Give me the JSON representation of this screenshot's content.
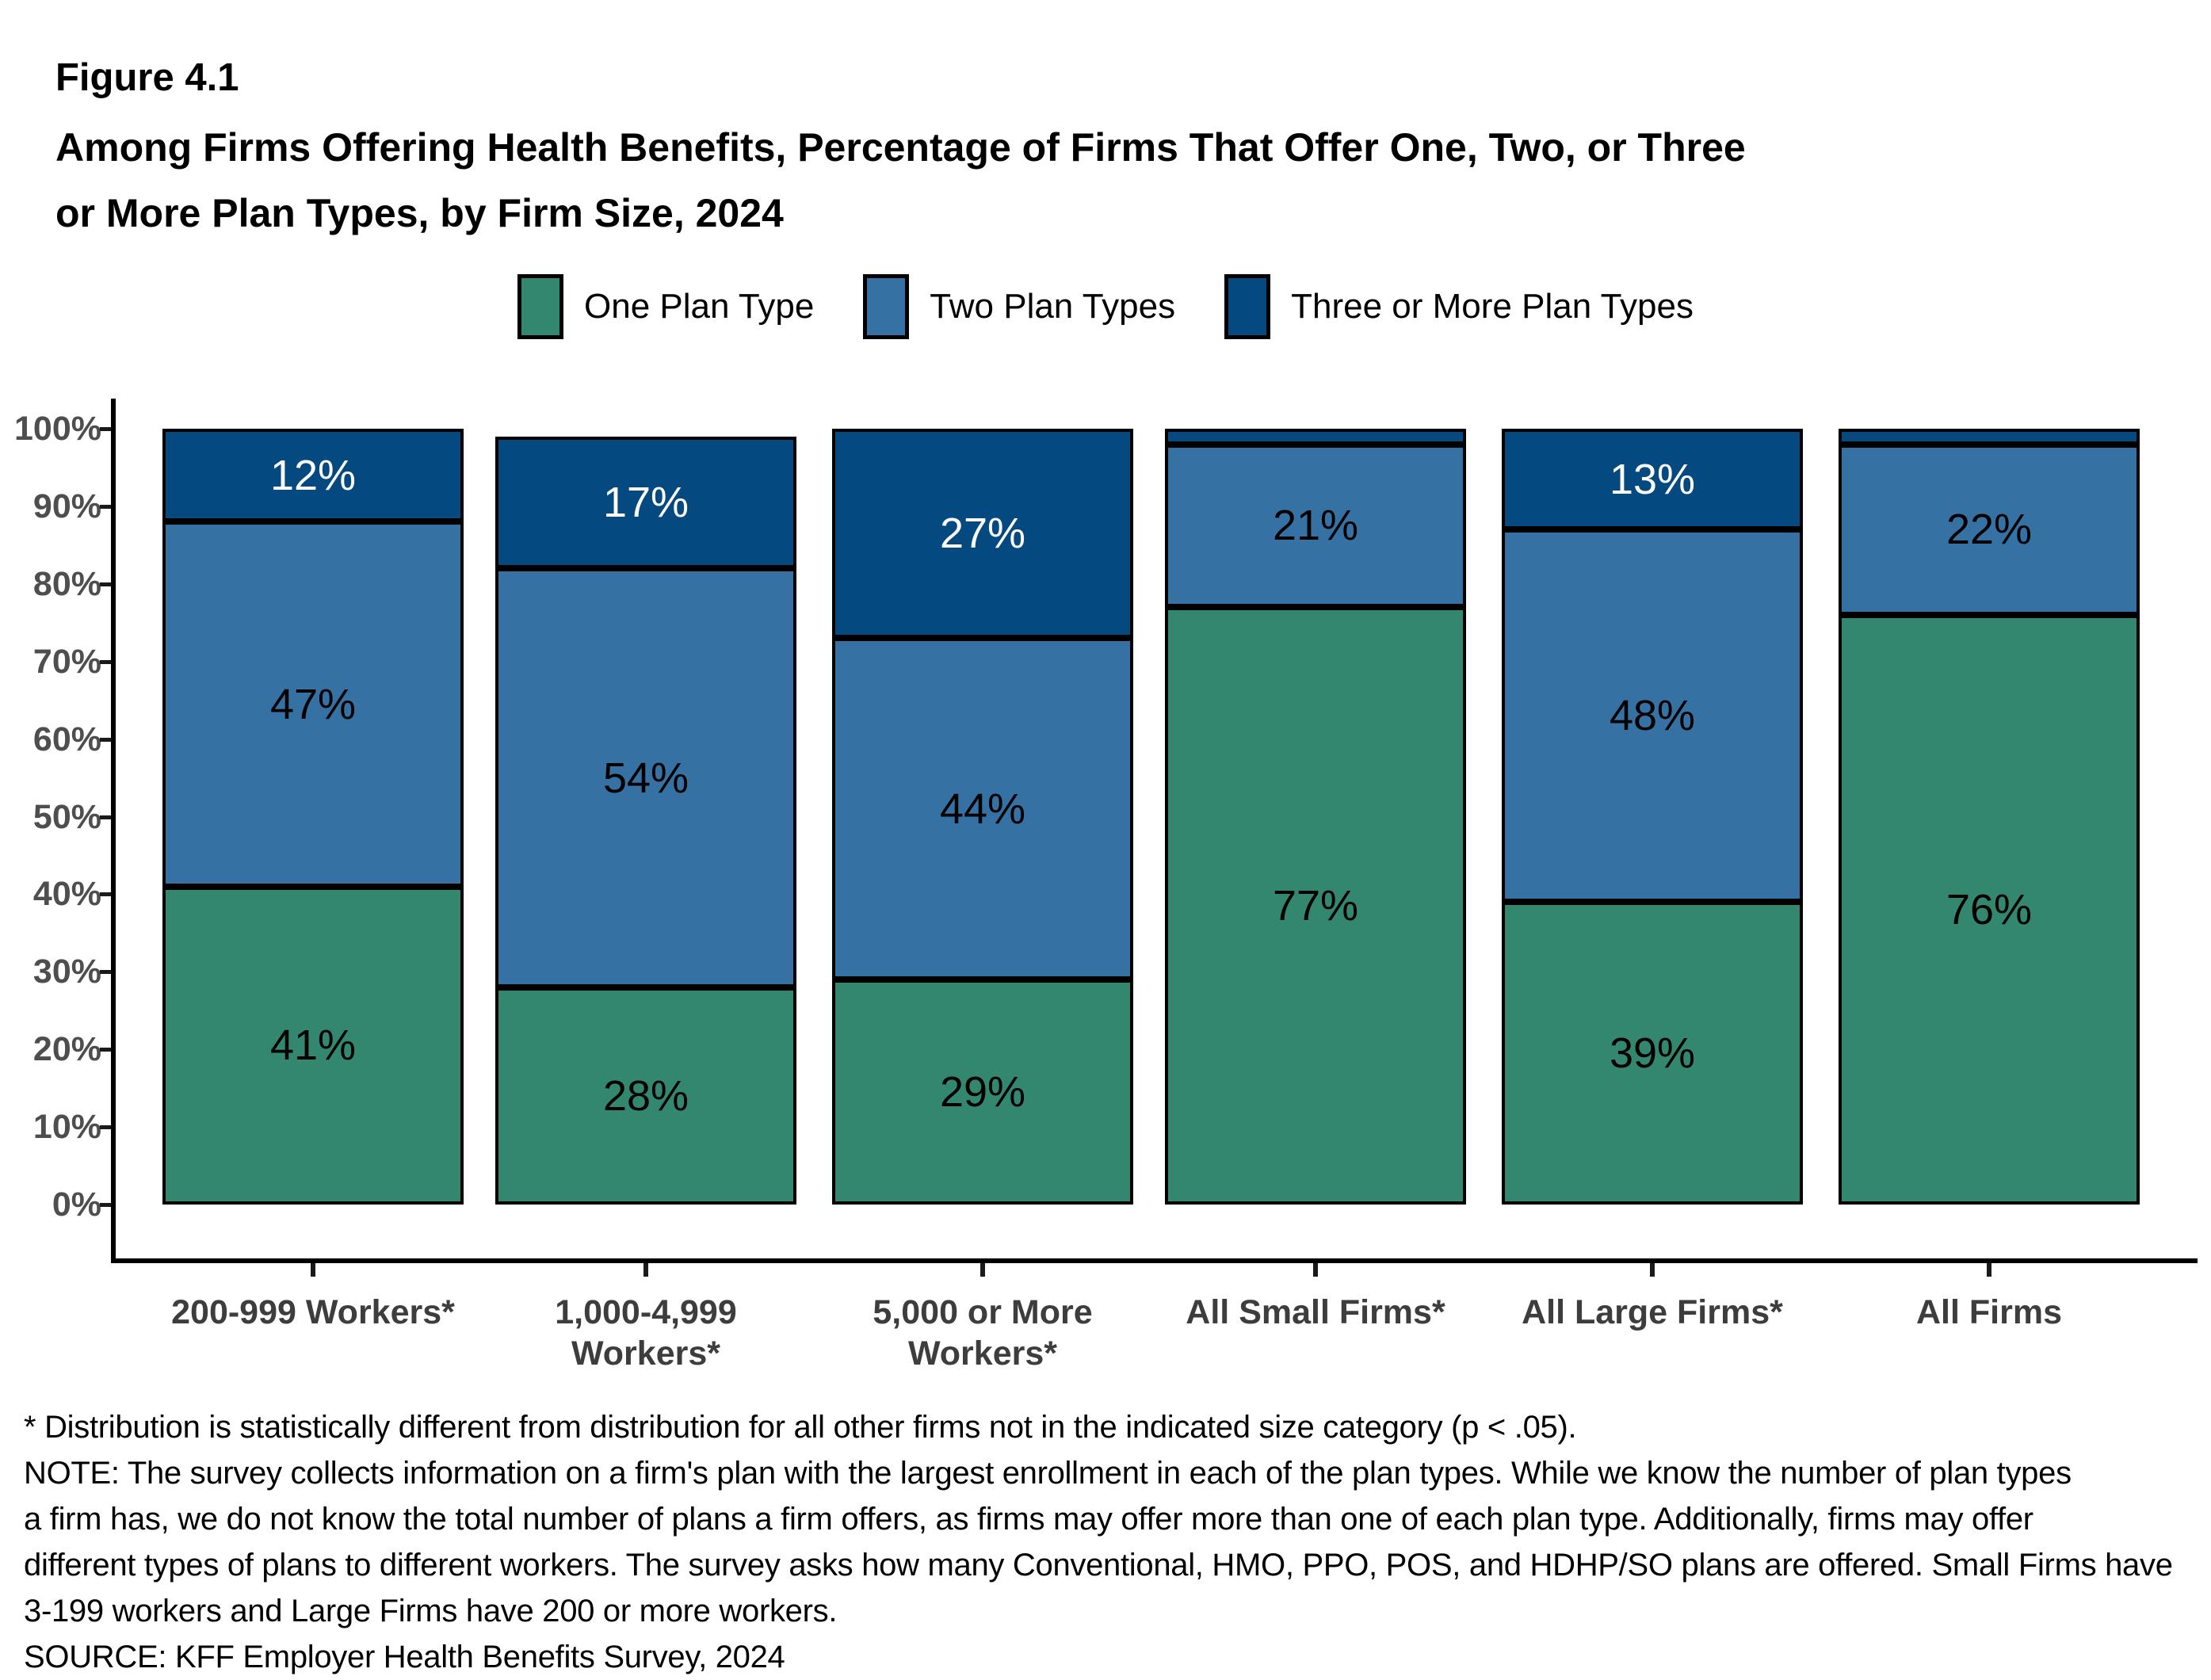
{
  "figure": {
    "label": "Figure 4.1",
    "title_line1": "Among Firms Offering Health Benefits, Percentage of Firms That Offer One, Two, or Three",
    "title_line2": "or More Plan Types, by Firm Size, 2024"
  },
  "chart_data": {
    "type": "bar",
    "subtype": "100%-stacked-vertical",
    "categories": [
      "200-999 Workers*",
      "1,000-4,999\nWorkers*",
      "5,000 or More\nWorkers*",
      "All Small Firms*",
      "All Large Firms*",
      "All Firms"
    ],
    "series": [
      {
        "name": "One Plan Type",
        "color": "#33876F",
        "values": [
          41,
          28,
          29,
          77,
          39,
          76
        ],
        "labels": [
          "41%",
          "28%",
          "29%",
          "77%",
          "39%",
          "76%"
        ],
        "label_color": "#000000"
      },
      {
        "name": "Two Plan Types",
        "color": "#3571A3",
        "values": [
          47,
          54,
          44,
          21,
          48,
          22
        ],
        "labels": [
          "47%",
          "54%",
          "44%",
          "21%",
          "48%",
          "22%"
        ],
        "label_color": "#000000"
      },
      {
        "name": "Three or More Plan Types",
        "color": "#04497F",
        "values": [
          12,
          17,
          27,
          2,
          13,
          2
        ],
        "labels": [
          "12%",
          "17%",
          "27%",
          "",
          "13%",
          ""
        ],
        "label_color": "#ffffff"
      }
    ],
    "ylim": [
      0,
      100
    ],
    "ytick_labels": [
      "0%",
      "10%",
      "20%",
      "30%",
      "40%",
      "50%",
      "60%",
      "70%",
      "80%",
      "90%",
      "100%"
    ],
    "grid": "off",
    "legend_position": "top"
  },
  "footnotes": {
    "lines": [
      "* Distribution is statistically different from distribution for all other firms not in the indicated size category (p < .05).",
      "NOTE: The survey collects information on a firm's plan with the largest enrollment in each of the plan types. While we know the number of plan types",
      "a firm has, we do not know the total number of plans a firm offers, as firms may offer more than one of each plan type. Additionally, firms may offer",
      "different types of plans to different workers. The survey asks how many Conventional, HMO, PPO, POS, and HDHP/SO plans are offered. Small Firms have",
      "3-199 workers and Large Firms have 200 or more workers.",
      "SOURCE: KFF Employer Health Benefits Survey, 2024"
    ]
  }
}
